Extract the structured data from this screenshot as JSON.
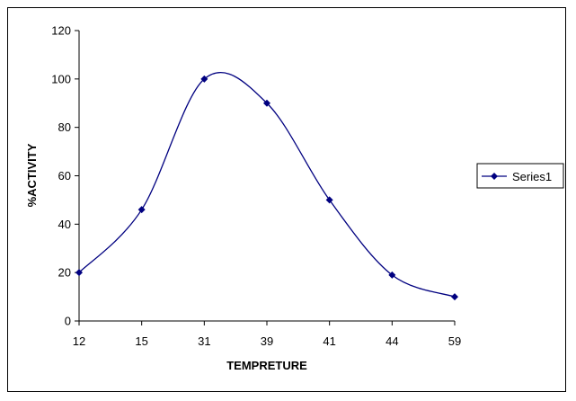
{
  "chart_data": {
    "type": "line",
    "smooth": true,
    "categories": [
      "12",
      "15",
      "31",
      "39",
      "41",
      "44",
      "59"
    ],
    "series": [
      {
        "name": "Series1",
        "values": [
          20,
          46,
          100,
          90,
          50,
          19,
          10
        ]
      }
    ],
    "xlabel": "TEMPRETURE",
    "ylabel": "%ACTIVITY",
    "ylim": [
      0,
      120
    ],
    "yticks": [
      0,
      20,
      40,
      60,
      80,
      100,
      120
    ],
    "grid": false,
    "legend": "right",
    "colors": {
      "series": "#000080",
      "axis": "#000000"
    }
  }
}
